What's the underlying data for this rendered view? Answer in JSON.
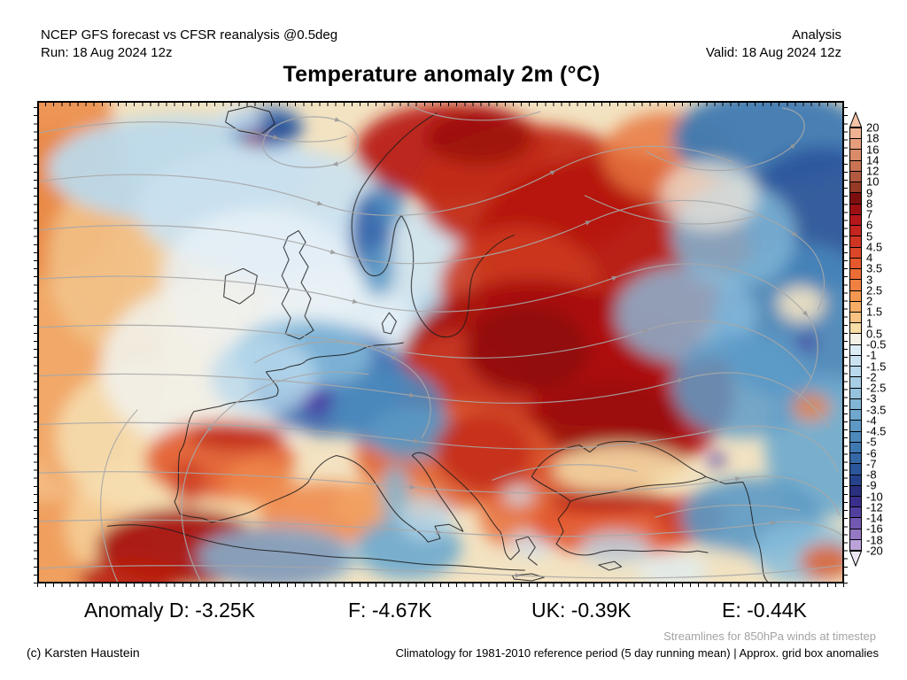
{
  "header": {
    "model_line": "NCEP GFS forecast vs CFSR reanalysis @0.5deg",
    "run_line": "Run: 18 Aug 2024 12z",
    "mode": "Analysis",
    "valid_line": "Valid: 18 Aug 2024 12z"
  },
  "title": "Temperature anomaly 2m (°C)",
  "colorbar": {
    "unit": "°C / K",
    "tick_labels": [
      "20",
      "18",
      "16",
      "14",
      "12",
      "10",
      "9",
      "8",
      "7",
      "6",
      "5",
      "4.5",
      "4",
      "3.5",
      "3",
      "2.5",
      "2",
      "1.5",
      "1",
      "0.5",
      "-0.5",
      "-1",
      "-1.5",
      "-2",
      "-2.5",
      "-3",
      "-3.5",
      "-4",
      "-4.5",
      "-5",
      "-6",
      "-7",
      "-8",
      "-9",
      "-10",
      "-12",
      "-14",
      "-16",
      "-18",
      "-20"
    ],
    "band_colors": [
      "#f0b293",
      "#e59d7c",
      "#d98a68",
      "#c97455",
      "#b25a40",
      "#963a26",
      "#7d0f10",
      "#9c1013",
      "#b5181a",
      "#c4251e",
      "#d03524",
      "#dc4628",
      "#e5582d",
      "#ec6c36",
      "#f18142",
      "#f59750",
      "#f8ad66",
      "#fac383",
      "#f9dda6",
      "#f4f1e6",
      "#dcedf6",
      "#cbe3f1",
      "#b9d9ec",
      "#a7cee5",
      "#94c2dd",
      "#81b5d5",
      "#6fa7cd",
      "#5e98c4",
      "#4e89bb",
      "#4079b1",
      "#3568a6",
      "#2c569b",
      "#27428c",
      "#2a307e",
      "#3a2f8c",
      "#52409e",
      "#7258b0",
      "#9478c4",
      "#bba3da"
    ],
    "arrow_top_color": "#f5c3a8",
    "arrow_bottom_color": "#ece5f6"
  },
  "anomaly_summary": {
    "d": "Anomaly D: -3.25K",
    "f": "F: -4.67K",
    "uk": "UK: -0.39K",
    "e": "E: -0.44K"
  },
  "footer": {
    "streamlines_note": "Streamlines for 850hPa winds at timestep",
    "copyright": "(c) Karsten Haustein",
    "climatology_note": "Climatology for 1981-2010 reference period (5 day running mean) | Approx. grid box anomalies"
  },
  "map": {
    "region": "Europe / North Atlantic",
    "overlay": "850hPa wind streamlines",
    "streamline_color": "#a8a8a8",
    "coastline_color": "#1c1c1c",
    "notable_anomalies": [
      {
        "area": "Scandinavia / Eastern Europe / Western Russia",
        "sign": "warm",
        "approx_value": "+5 to +10"
      },
      {
        "area": "France / Germany / Alps",
        "sign": "cold",
        "approx_value": "-4 to -10"
      },
      {
        "area": "North-eastern Russia (top right)",
        "sign": "cold",
        "approx_value": "-3 to -8"
      },
      {
        "area": "Morocco / Algeria / northern Iberia",
        "sign": "warm",
        "approx_value": "+4 to +9"
      },
      {
        "area": "North Atlantic band / UK",
        "sign": "cold",
        "approx_value": "-0.5 to -2"
      },
      {
        "area": "Eastern Iceland / Norwegian mountains",
        "sign": "cold",
        "approx_value": "-4 to -8"
      },
      {
        "area": "Central Mediterranean",
        "sign": "cold",
        "approx_value": "-1 to -4"
      },
      {
        "area": "Turkey / Balkans / Ukraine",
        "sign": "warm",
        "approx_value": "+3 to +9"
      }
    ]
  }
}
